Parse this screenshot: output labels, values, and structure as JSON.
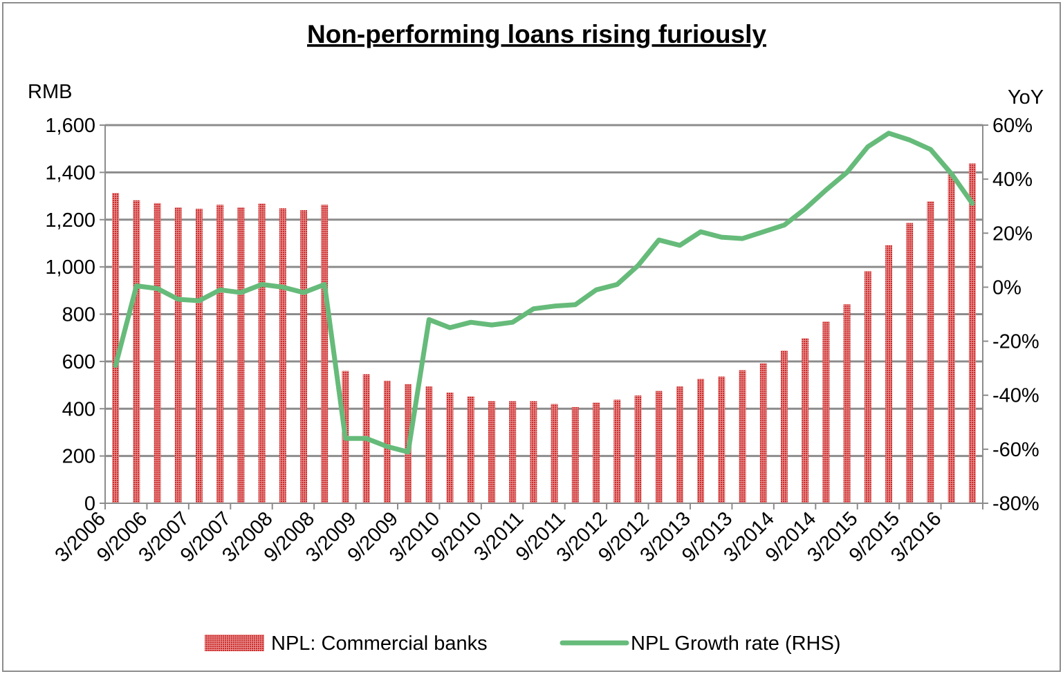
{
  "chart_data": {
    "type": "bar",
    "title": "Non-performing loans rising furiously",
    "y_left_unit": "RMB",
    "y_right_unit": "YoY",
    "y_left_ticks": [
      "0",
      "200",
      "400",
      "600",
      "800",
      "1,000",
      "1,200",
      "1,400",
      "1,600"
    ],
    "y_right_ticks": [
      "-80%",
      "-60%",
      "-40%",
      "-20%",
      "0%",
      "20%",
      "40%",
      "60%"
    ],
    "ylim_left": [
      0,
      1600
    ],
    "ylim_right": [
      -80,
      60
    ],
    "x_tick_labels": [
      "3/2006",
      "9/2006",
      "3/2007",
      "9/2007",
      "3/2008",
      "9/2008",
      "3/2009",
      "9/2009",
      "3/2010",
      "9/2010",
      "3/2011",
      "9/2011",
      "3/2012",
      "9/2012",
      "3/2013",
      "9/2013",
      "3/2014",
      "9/2014",
      "3/2015",
      "9/2015",
      "3/2016"
    ],
    "grid": true,
    "legend_position": "bottom",
    "colors": {
      "bars": "#cc2a2a",
      "line": "#66bb7a",
      "grid": "#8c8c8c",
      "axis": "#8c8c8c"
    },
    "series": [
      {
        "name": "NPL: Commercial banks",
        "type": "bar",
        "axis": "left",
        "values": [
          1313,
          1282,
          1270,
          1252,
          1246,
          1263,
          1252,
          1268,
          1248,
          1240,
          1263,
          560,
          546,
          518,
          504,
          494,
          468,
          452,
          432,
          432,
          432,
          420,
          407,
          426,
          438,
          456,
          475,
          494,
          526,
          536,
          563,
          592,
          646,
          698,
          769,
          842,
          982,
          1092,
          1186,
          1277,
          1394,
          1438
        ]
      },
      {
        "name": "NPL Growth rate (RHS)",
        "type": "line",
        "axis": "right",
        "values": [
          -29,
          0.5,
          -0.5,
          -4.5,
          -5,
          -1,
          -2,
          1,
          0,
          -2,
          1,
          -56,
          -56,
          -59,
          -61,
          -12,
          -15,
          -13,
          -14,
          -13,
          -8,
          -7,
          -6.5,
          -1,
          1,
          8,
          17.5,
          15.5,
          20.5,
          18.5,
          18,
          20.5,
          23,
          29,
          36,
          42.5,
          52,
          57,
          54.5,
          51,
          42,
          31
        ]
      }
    ]
  }
}
